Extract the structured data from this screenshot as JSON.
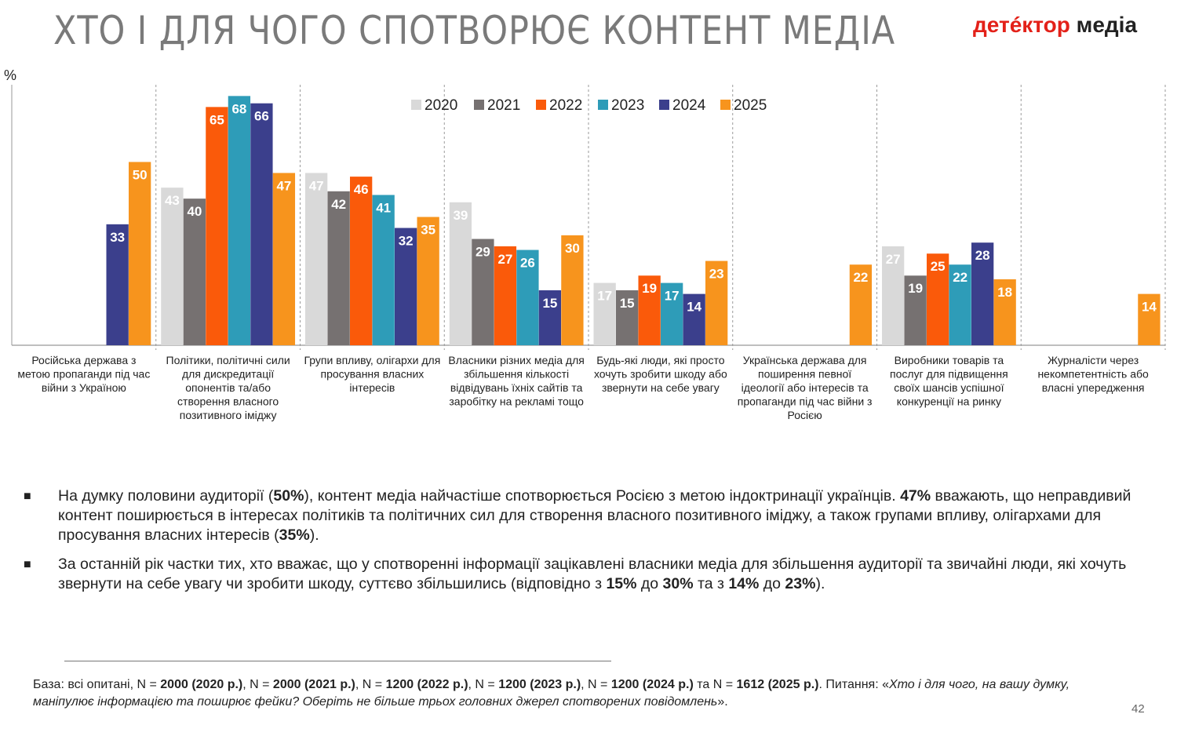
{
  "header": {
    "title": "ХТО І ДЛЯ ЧОГО СПОТВОРЮЄ КОНТЕНТ МЕДІА",
    "logo_part1": "детéктор",
    "logo_part2": "медіа"
  },
  "chart_data": {
    "type": "bar",
    "ylabel": "%",
    "ylim": [
      0,
      70
    ],
    "legend_position": "top-center",
    "categories": [
      "Російська держава з метою пропаганди під час війни з Україною",
      "Політики, політичні сили для дискредитації опонентів та/або створення власного позитивного іміджу",
      "Групи впливу, олігархи для просування власних інтересів",
      "Власники різних медіа для збільшення кількості відвідувань їхніх сайтів та заробітку на рекламі тощо",
      "Будь-які люди, які просто хочуть зробити шкоду або звернути на себе увагу",
      "Українська держава для поширення певної ідеології або інтересів та пропаганди під час війни з Росією",
      "Виробники товарів та послуг для підвищення своїх шансів успішної конкуренції на ринку",
      "Журналісти через некомпетентність або власні упередження"
    ],
    "series": [
      {
        "name": "2020",
        "color": "#d9d9d9",
        "values": [
          null,
          43,
          47,
          39,
          17,
          null,
          27,
          null
        ]
      },
      {
        "name": "2021",
        "color": "#767171",
        "values": [
          null,
          40,
          42,
          29,
          15,
          null,
          19,
          null
        ]
      },
      {
        "name": "2022",
        "color": "#fa5a0a",
        "values": [
          null,
          65,
          46,
          27,
          19,
          null,
          25,
          null
        ]
      },
      {
        "name": "2023",
        "color": "#2e9cb8",
        "values": [
          null,
          68,
          41,
          26,
          17,
          null,
          22,
          null
        ]
      },
      {
        "name": "2024",
        "color": "#3b3f8c",
        "values": [
          33,
          66,
          32,
          15,
          14,
          null,
          28,
          null
        ]
      },
      {
        "name": "2025",
        "color": "#f7941d",
        "values": [
          50,
          47,
          35,
          30,
          23,
          22,
          18,
          14
        ]
      }
    ]
  },
  "bullets": [
    {
      "parts": [
        {
          "t": "На думку половини аудиторії (",
          "b": false
        },
        {
          "t": "50%",
          "b": true
        },
        {
          "t": "), контент медіа найчастіше спотворюється Росією з метою індоктринації українців. ",
          "b": false
        },
        {
          "t": "47%",
          "b": true
        },
        {
          "t": " вважають, що неправдивий контент поширюється в інтересах політиків та політичних сил для створення власного позитивного іміджу, а також групами впливу, олігархами для просування власних інтересів (",
          "b": false
        },
        {
          "t": "35%",
          "b": true
        },
        {
          "t": ").",
          "b": false
        }
      ]
    },
    {
      "parts": [
        {
          "t": "За останній рік частки тих, хто вважає, що у спотворенні інформації зацікавлені власники медіа для збільшення аудиторії та звичайні люди, які хочуть звернути на себе увагу чи зробити шкоду, суттєво збільшились (відповідно з ",
          "b": false
        },
        {
          "t": "15%",
          "b": true
        },
        {
          "t": " до ",
          "b": false
        },
        {
          "t": "30%",
          "b": true
        },
        {
          "t": " та з ",
          "b": false
        },
        {
          "t": "14%",
          "b": true
        },
        {
          "t": " до ",
          "b": false
        },
        {
          "t": "23%",
          "b": true
        },
        {
          "t": ").",
          "b": false
        }
      ]
    }
  ],
  "bullet_marker": "■",
  "footer": {
    "parts": [
      {
        "t": "База: всі опитані, N = ",
        "b": false,
        "i": false
      },
      {
        "t": "2000 (2020 р.)",
        "b": true,
        "i": false
      },
      {
        "t": ", N = ",
        "b": false,
        "i": false
      },
      {
        "t": "2000 (2021 р.)",
        "b": true,
        "i": false
      },
      {
        "t": ", N = ",
        "b": false,
        "i": false
      },
      {
        "t": "1200 (2022 р.)",
        "b": true,
        "i": false
      },
      {
        "t": ", N = ",
        "b": false,
        "i": false
      },
      {
        "t": "1200 (2023 р.)",
        "b": true,
        "i": false
      },
      {
        "t": ", N = ",
        "b": false,
        "i": false
      },
      {
        "t": "1200 (2024 р.)",
        "b": true,
        "i": false
      },
      {
        "t": " та N = ",
        "b": false,
        "i": false
      },
      {
        "t": "1612 (2025 р.)",
        "b": true,
        "i": false
      },
      {
        "t": ". Питання: «",
        "b": false,
        "i": false
      },
      {
        "t": "Хто і для чого, на вашу думку, маніпулює інформацією та поширює фейки? Оберіть не більше трьох головних джерел спотворених повідомлень",
        "b": false,
        "i": true
      },
      {
        "t": "».",
        "b": false,
        "i": false
      }
    ]
  },
  "page_number": "42"
}
